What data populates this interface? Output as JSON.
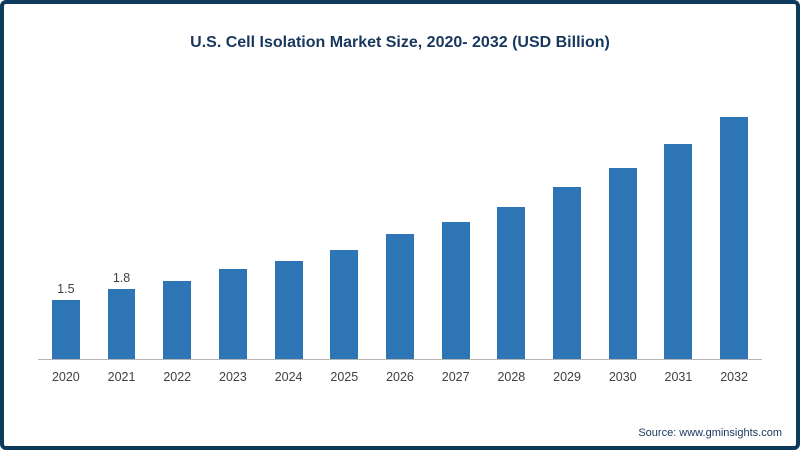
{
  "title": "U.S. Cell Isolation Market Size, 2020- 2032 (USD Billion)",
  "source": "Source: www.gminsights.com",
  "chart_data": {
    "type": "bar",
    "title": "U.S. Cell Isolation Market Size, 2020- 2032 (USD Billion)",
    "categories": [
      "2020",
      "2021",
      "2022",
      "2023",
      "2024",
      "2025",
      "2026",
      "2027",
      "2028",
      "2029",
      "2030",
      "2031",
      "2032"
    ],
    "values": [
      1.5,
      1.8,
      2.0,
      2.3,
      2.5,
      2.8,
      3.2,
      3.5,
      3.9,
      4.4,
      4.9,
      5.5,
      6.2
    ],
    "data_labels": {
      "2020": "1.5",
      "2021": "1.8"
    },
    "bar_color": "#2e75b6",
    "xlabel": "",
    "ylabel": "",
    "ylim": [
      0,
      6.5
    ],
    "grid": false,
    "legend": false,
    "axis_line_color": "#b5b5b5"
  }
}
